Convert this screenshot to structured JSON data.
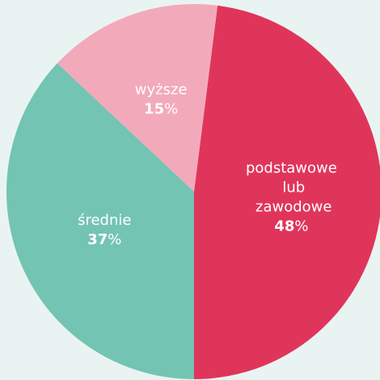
{
  "chart_data": {
    "type": "pie",
    "categories": [
      "podstawowe lub zawodowe",
      "średnie",
      "wyższe"
    ],
    "values": [
      48,
      37,
      15
    ],
    "value_labels": [
      "48%",
      "37%",
      "15%"
    ],
    "colors": [
      "#e0355b",
      "#74c4b3",
      "#f2aabb"
    ]
  }
}
